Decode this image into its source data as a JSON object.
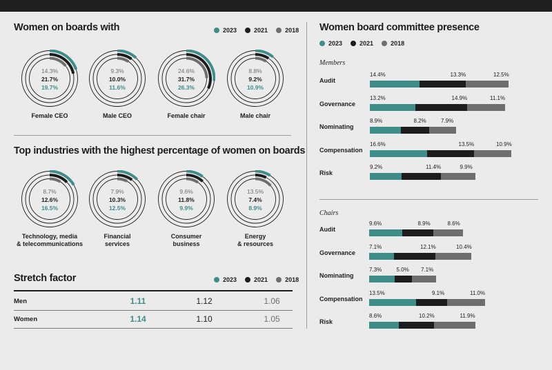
{
  "colors": {
    "c2023": "#3e8d89",
    "c2021": "#1d1d1d",
    "c2018": "#6e6e6e"
  },
  "legend": {
    "y2023": "2023",
    "y2021": "2021",
    "y2018": "2018"
  },
  "women_on_boards": {
    "title": "Women on boards with",
    "items": [
      {
        "label": "Female CEO",
        "v2018": "14.3%",
        "v2021": "21.7%",
        "v2023": "19.7%"
      },
      {
        "label": "Male CEO",
        "v2018": "9.3%",
        "v2021": "10.0%",
        "v2023": "11.6%"
      },
      {
        "label": "Female chair",
        "v2018": "24.6%",
        "v2021": "31.7%",
        "v2023": "26.3%"
      },
      {
        "label": "Male chair",
        "v2018": "8.8%",
        "v2021": "9.2%",
        "v2023": "10.9%"
      }
    ]
  },
  "top_industries": {
    "title": "Top industries with the highest percentage of women on boards",
    "items": [
      {
        "label": "Technology, media\n& telecommunications",
        "v2018": "8.7%",
        "v2021": "12.6%",
        "v2023": "16.5%"
      },
      {
        "label": "Financial\nservices",
        "v2018": "7.9%",
        "v2021": "10.3%",
        "v2023": "12.5%"
      },
      {
        "label": "Consumer\nbusiness",
        "v2018": "9.6%",
        "v2021": "11.8%",
        "v2023": "9.9%"
      },
      {
        "label": "Energy\n& resources",
        "v2018": "13.5%",
        "v2021": "7.4%",
        "v2023": "8.9%"
      }
    ]
  },
  "stretch_factor": {
    "title": "Stretch factor",
    "rows": [
      {
        "label": "Men",
        "v2023": "1.11",
        "v2021": "1.12",
        "v2018": "1.06"
      },
      {
        "label": "Women",
        "v2023": "1.14",
        "v2021": "1.10",
        "v2018": "1.05"
      }
    ]
  },
  "committee": {
    "title": "Women board committee presence",
    "members_label": "Members",
    "chairs_label": "Chairs",
    "members": [
      {
        "label": "Audit",
        "v2023": 14.4,
        "v2021": 13.3,
        "v2018": 12.5
      },
      {
        "label": "Governance",
        "v2023": 13.2,
        "v2021": 14.9,
        "v2018": 11.1
      },
      {
        "label": "Nominating",
        "v2023": 8.9,
        "v2021": 8.2,
        "v2018": 7.9
      },
      {
        "label": "Compensation",
        "v2023": 16.6,
        "v2021": 13.5,
        "v2018": 10.9
      },
      {
        "label": "Risk",
        "v2023": 9.2,
        "v2021": 11.4,
        "v2018": 9.9
      }
    ],
    "chairs": [
      {
        "label": "Audit",
        "v2023": 9.6,
        "v2021": 8.9,
        "v2018": 8.6
      },
      {
        "label": "Governance",
        "v2023": 7.1,
        "v2021": 12.1,
        "v2018": 10.4
      },
      {
        "label": "Nominating",
        "v2023": 7.3,
        "v2021": 5.0,
        "v2018": 7.1
      },
      {
        "label": "Compensation",
        "v2023": 13.5,
        "v2021": 9.1,
        "v2018": 11.0
      },
      {
        "label": "Risk",
        "v2023": 8.6,
        "v2021": 10.2,
        "v2018": 11.9
      }
    ]
  },
  "chart_data": [
    {
      "type": "pie",
      "title": "Women on boards with",
      "categories": [
        "Female CEO",
        "Male CEO",
        "Female chair",
        "Male chair"
      ],
      "series": [
        {
          "name": "2023",
          "values": [
            19.7,
            11.6,
            26.3,
            10.9
          ]
        },
        {
          "name": "2021",
          "values": [
            21.7,
            10.0,
            31.7,
            9.2
          ]
        },
        {
          "name": "2018",
          "values": [
            14.3,
            9.3,
            24.6,
            8.8
          ]
        }
      ]
    },
    {
      "type": "pie",
      "title": "Top industries with the highest percentage of women on boards",
      "categories": [
        "Technology, media & telecommunications",
        "Financial services",
        "Consumer business",
        "Energy & resources"
      ],
      "series": [
        {
          "name": "2023",
          "values": [
            16.5,
            12.5,
            9.9,
            8.9
          ]
        },
        {
          "name": "2021",
          "values": [
            12.6,
            10.3,
            11.8,
            7.4
          ]
        },
        {
          "name": "2018",
          "values": [
            8.7,
            7.9,
            9.6,
            13.5
          ]
        }
      ]
    },
    {
      "type": "table",
      "title": "Stretch factor",
      "categories": [
        "Men",
        "Women"
      ],
      "series": [
        {
          "name": "2023",
          "values": [
            1.11,
            1.14
          ]
        },
        {
          "name": "2021",
          "values": [
            1.12,
            1.1
          ]
        },
        {
          "name": "2018",
          "values": [
            1.06,
            1.05
          ]
        }
      ]
    },
    {
      "type": "bar",
      "title": "Women board committee presence",
      "subtitle": "Members",
      "categories": [
        "Audit",
        "Governance",
        "Nominating",
        "Compensation",
        "Risk"
      ],
      "series": [
        {
          "name": "2023",
          "values": [
            14.4,
            13.2,
            8.9,
            16.6,
            9.2
          ]
        },
        {
          "name": "2021",
          "values": [
            13.3,
            14.9,
            8.2,
            13.5,
            11.4
          ]
        },
        {
          "name": "2018",
          "values": [
            12.5,
            11.1,
            7.9,
            10.9,
            9.9
          ]
        }
      ]
    },
    {
      "type": "bar",
      "title": "Women board committee presence",
      "subtitle": "Chairs",
      "categories": [
        "Audit",
        "Governance",
        "Nominating",
        "Compensation",
        "Risk"
      ],
      "series": [
        {
          "name": "2023",
          "values": [
            9.6,
            7.1,
            7.3,
            13.5,
            8.6
          ]
        },
        {
          "name": "2021",
          "values": [
            8.9,
            12.1,
            5.0,
            9.1,
            10.2
          ]
        },
        {
          "name": "2018",
          "values": [
            8.6,
            10.4,
            7.1,
            11.0,
            11.9
          ]
        }
      ]
    }
  ]
}
